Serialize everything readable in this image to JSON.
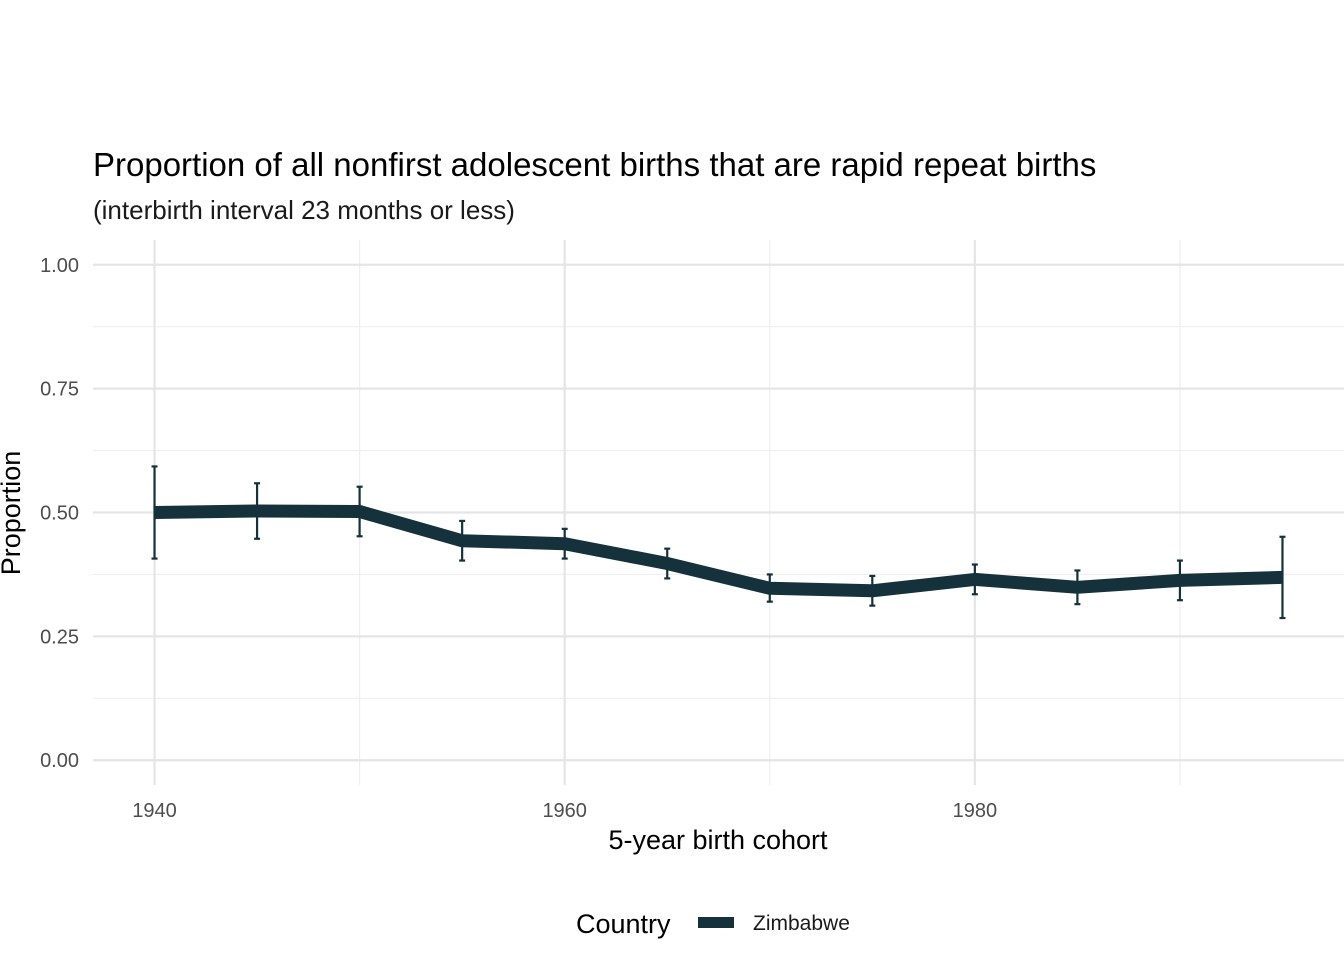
{
  "chart_data": {
    "type": "line",
    "title": "Proportion of all nonfirst adolescent births that are rapid repeat births",
    "subtitle": "(interbirth interval 23 months or less)",
    "xlabel": "5-year birth cohort",
    "ylabel": "Proportion",
    "xlim": [
      1937,
      1998
    ],
    "ylim": [
      -0.05,
      1.05
    ],
    "x_ticks": [
      1940,
      1960,
      1980
    ],
    "x_tick_labels": [
      "1940",
      "1960",
      "1980"
    ],
    "x_minor_ticks": [
      1950,
      1970,
      1990
    ],
    "y_ticks": [
      0,
      0.25,
      0.5,
      0.75,
      1.0
    ],
    "y_tick_labels": [
      "0.00",
      "0.25",
      "0.50",
      "0.75",
      "1.00"
    ],
    "y_minor_ticks": [
      0.125,
      0.375,
      0.625,
      0.875
    ],
    "grid": true,
    "legend": {
      "title": "Country",
      "position": "bottom"
    },
    "series": [
      {
        "name": "Zimbabwe",
        "color": "#15323c",
        "x": [
          1940,
          1945,
          1950,
          1955,
          1960,
          1965,
          1970,
          1975,
          1980,
          1985,
          1990,
          1995
        ],
        "values": [
          0.5,
          0.503,
          0.502,
          0.443,
          0.437,
          0.397,
          0.347,
          0.342,
          0.365,
          0.349,
          0.363,
          0.369
        ],
        "lower": [
          0.407,
          0.447,
          0.452,
          0.403,
          0.407,
          0.367,
          0.32,
          0.312,
          0.335,
          0.315,
          0.323,
          0.287
        ],
        "upper": [
          0.593,
          0.559,
          0.552,
          0.483,
          0.467,
          0.427,
          0.375,
          0.372,
          0.395,
          0.383,
          0.403,
          0.451
        ]
      }
    ]
  }
}
